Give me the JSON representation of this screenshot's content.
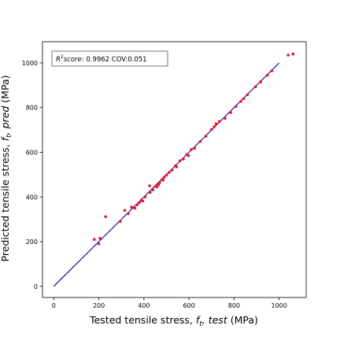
{
  "chart_data": {
    "type": "scatter",
    "xlabel": {
      "prefix": "Tested tensile stress, ",
      "symbol": "f",
      "subscript": "t",
      "italic": ", test",
      "suffix": " (MPa)"
    },
    "ylabel": {
      "prefix": "Predicted tensile stress, ",
      "symbol": "f",
      "subscript": "t",
      "italic": ", pred",
      "suffix": " (MPa)"
    },
    "annotation": {
      "r2_label": "R",
      "r2_sup": "2",
      "r2_rest": "score",
      "value_text": ": 0.9962 COV:0.051"
    },
    "xlim": [
      -50,
      1120
    ],
    "ylim": [
      -50,
      1095
    ],
    "xticks": [
      0,
      200,
      400,
      600,
      800,
      1000
    ],
    "yticks": [
      0,
      200,
      400,
      600,
      800,
      1000
    ],
    "grid": false,
    "reference_line": {
      "from": [
        0,
        0
      ],
      "to": [
        1000,
        1000
      ],
      "color": "#00008b"
    },
    "marker_color": "#e8142e",
    "points": [
      [
        180,
        210
      ],
      [
        200,
        190
      ],
      [
        205,
        215
      ],
      [
        230,
        312
      ],
      [
        295,
        290
      ],
      [
        315,
        340
      ],
      [
        330,
        325
      ],
      [
        345,
        355
      ],
      [
        360,
        350
      ],
      [
        370,
        365
      ],
      [
        380,
        375
      ],
      [
        388,
        385
      ],
      [
        395,
        382
      ],
      [
        405,
        400
      ],
      [
        425,
        450
      ],
      [
        428,
        420
      ],
      [
        440,
        432
      ],
      [
        452,
        448
      ],
      [
        458,
        445
      ],
      [
        465,
        455
      ],
      [
        470,
        465
      ],
      [
        480,
        478
      ],
      [
        485,
        475
      ],
      [
        490,
        488
      ],
      [
        500,
        498
      ],
      [
        512,
        510
      ],
      [
        525,
        520
      ],
      [
        540,
        540
      ],
      [
        545,
        535
      ],
      [
        560,
        562
      ],
      [
        575,
        570
      ],
      [
        590,
        590
      ],
      [
        598,
        585
      ],
      [
        610,
        612
      ],
      [
        625,
        618
      ],
      [
        650,
        648
      ],
      [
        675,
        672
      ],
      [
        700,
        702
      ],
      [
        712,
        715
      ],
      [
        720,
        728
      ],
      [
        735,
        738
      ],
      [
        760,
        752
      ],
      [
        785,
        778
      ],
      [
        808,
        805
      ],
      [
        830,
        828
      ],
      [
        842,
        840
      ],
      [
        860,
        858
      ],
      [
        895,
        893
      ],
      [
        918,
        915
      ],
      [
        948,
        945
      ],
      [
        968,
        965
      ],
      [
        1040,
        1035
      ],
      [
        1062,
        1040
      ]
    ]
  }
}
